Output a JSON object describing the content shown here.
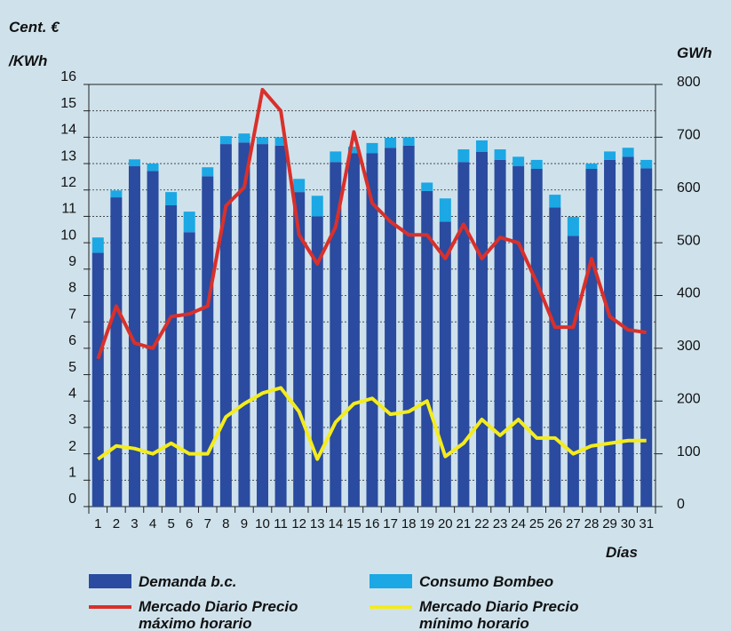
{
  "chart_data": {
    "type": "bar",
    "y_label": "Cent. €\n/KWh",
    "y2_label": "GWh",
    "x_label": "Días",
    "categories": [
      "1",
      "2",
      "3",
      "4",
      "5",
      "6",
      "7",
      "8",
      "9",
      "10",
      "11",
      "12",
      "13",
      "14",
      "15",
      "16",
      "17",
      "18",
      "19",
      "20",
      "21",
      "22",
      "23",
      "24",
      "25",
      "26",
      "27",
      "28",
      "29",
      "30",
      "31"
    ],
    "ylim": [
      0,
      16
    ],
    "yticks": [
      0,
      1,
      2,
      3,
      4,
      5,
      6,
      7,
      8,
      9,
      10,
      11,
      12,
      13,
      14,
      15,
      16
    ],
    "y2lim": [
      0,
      800
    ],
    "y2ticks": [
      0,
      100,
      200,
      300,
      400,
      500,
      600,
      700,
      800
    ],
    "grid": true,
    "series": [
      {
        "name": "Demanda b.c.",
        "type": "bar",
        "axis": "y2",
        "color": "#2a4b9f",
        "values": [
          481,
          586,
          645,
          636,
          571,
          520,
          626,
          687,
          690,
          687,
          684,
          596,
          550,
          653,
          670,
          670,
          680,
          684,
          598,
          540,
          653,
          672,
          657,
          645,
          640,
          567,
          513,
          640,
          657,
          663,
          641
        ]
      },
      {
        "name": "Consumo Bombeo",
        "type": "bar",
        "axis": "y2",
        "color": "#1ba8e4",
        "values": [
          29,
          13,
          13,
          14,
          25,
          39,
          17,
          15,
          17,
          13,
          16,
          25,
          39,
          20,
          12,
          19,
          19,
          16,
          16,
          44,
          24,
          22,
          20,
          18,
          17,
          24,
          36,
          10,
          16,
          17,
          16
        ]
      },
      {
        "name": "Mercado Diario Precio máximo horario",
        "type": "line",
        "axis": "y",
        "color": "#d9302b",
        "values": [
          5.6,
          7.6,
          6.2,
          6.0,
          7.2,
          7.3,
          7.6,
          11.4,
          12.1,
          15.8,
          15.0,
          10.3,
          9.2,
          10.6,
          14.2,
          11.5,
          10.8,
          10.3,
          10.3,
          9.4,
          10.7,
          9.4,
          10.2,
          10.0,
          8.5,
          6.8,
          6.8,
          9.4,
          7.2,
          6.7,
          6.6
        ]
      },
      {
        "name": "Mercado Diario Precio mínimo horario",
        "type": "line",
        "axis": "y",
        "color": "#f4ec1c",
        "values": [
          1.8,
          2.3,
          2.2,
          2.0,
          2.4,
          2.0,
          2.0,
          3.4,
          3.9,
          4.3,
          4.5,
          3.6,
          1.8,
          3.2,
          3.9,
          4.1,
          3.5,
          3.6,
          4.0,
          1.9,
          2.4,
          3.3,
          2.7,
          3.3,
          2.6,
          2.6,
          2.0,
          2.3,
          2.4,
          2.5,
          2.5
        ]
      }
    ]
  }
}
